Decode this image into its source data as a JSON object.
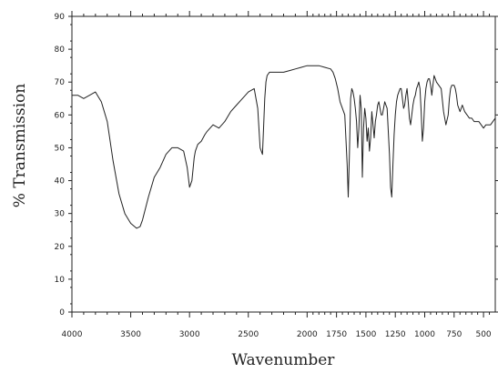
{
  "chart_data": {
    "type": "line",
    "title": "",
    "xlabel": "Wavenumber",
    "ylabel": "% Transmission",
    "xlim": [
      4000,
      400
    ],
    "ylim": [
      0,
      90
    ],
    "x_reversed": true,
    "grid": false,
    "legend": "none",
    "line_color": "#222222",
    "x_ticks": [
      4000,
      3500,
      3000,
      2500,
      2000,
      1750,
      1500,
      1250,
      1000,
      750,
      500
    ],
    "x_tick_labels": [
      "4000",
      "3500",
      "3000",
      "2500",
      "2000",
      "1750",
      "1500",
      "1250",
      "1000",
      "750",
      "500"
    ],
    "y_ticks": [
      0,
      10,
      20,
      30,
      40,
      50,
      60,
      70,
      80,
      90
    ],
    "y_tick_labels": [
      "0",
      "10",
      "20",
      "30",
      "40",
      "50",
      "60",
      "70",
      "80",
      "90"
    ],
    "series": [
      {
        "x": [
          4000,
          3950,
          3900,
          3850,
          3800,
          3750,
          3700,
          3650,
          3600,
          3550,
          3500,
          3450,
          3420,
          3400,
          3350,
          3300,
          3250,
          3200,
          3150,
          3100,
          3050,
          3020,
          3000,
          2980,
          2960,
          2950,
          2930,
          2900,
          2870,
          2850,
          2800,
          2750,
          2700,
          2650,
          2600,
          2550,
          2500,
          2450,
          2420,
          2400,
          2380,
          2370,
          2360,
          2350,
          2340,
          2320,
          2300,
          2250,
          2200,
          2150,
          2100,
          2050,
          2000,
          1950,
          1900,
          1850,
          1800,
          1780,
          1760,
          1740,
          1720,
          1700,
          1680,
          1660,
          1650,
          1640,
          1630,
          1620,
          1610,
          1600,
          1590,
          1580,
          1570,
          1560,
          1550,
          1540,
          1530,
          1520,
          1510,
          1500,
          1490,
          1480,
          1470,
          1460,
          1450,
          1440,
          1430,
          1420,
          1410,
          1400,
          1390,
          1380,
          1370,
          1360,
          1350,
          1340,
          1330,
          1320,
          1300,
          1290,
          1280,
          1270,
          1260,
          1250,
          1240,
          1230,
          1220,
          1210,
          1200,
          1190,
          1180,
          1170,
          1160,
          1150,
          1140,
          1130,
          1120,
          1110,
          1100,
          1090,
          1080,
          1070,
          1060,
          1050,
          1040,
          1030,
          1020,
          1010,
          1000,
          990,
          980,
          970,
          960,
          950,
          940,
          930,
          920,
          910,
          900,
          880,
          860,
          840,
          820,
          800,
          790,
          780,
          770,
          760,
          750,
          740,
          730,
          720,
          700,
          680,
          660,
          640,
          620,
          600,
          580,
          560,
          540,
          520,
          500,
          480,
          460,
          440,
          420,
          400
        ],
        "y": [
          66,
          66,
          65,
          66,
          67,
          64,
          58,
          46,
          36,
          30,
          27,
          25.5,
          26,
          28,
          35,
          41,
          44,
          48,
          50,
          50,
          49,
          44,
          38,
          40,
          47,
          49,
          51,
          52,
          54,
          55,
          57,
          56,
          58,
          61,
          63,
          65,
          67,
          68,
          62,
          50,
          48,
          56,
          65,
          70,
          72,
          73,
          73,
          73,
          73,
          73.5,
          74,
          74.5,
          75,
          75,
          75,
          74.5,
          74,
          73,
          71,
          68,
          64,
          62,
          60,
          45,
          35,
          48,
          65,
          68,
          67,
          65,
          62,
          58,
          50,
          56,
          66,
          62,
          41,
          56,
          62,
          59,
          52,
          56,
          49,
          53,
          61,
          57,
          53,
          58,
          60,
          63,
          64,
          62,
          60,
          60,
          62,
          64,
          63,
          62,
          48,
          38,
          35,
          45,
          54,
          60,
          64,
          66,
          67,
          68,
          68,
          65,
          62,
          63,
          66,
          68,
          64,
          59,
          57,
          60,
          63,
          65,
          66,
          68,
          69,
          70,
          68,
          61,
          52,
          56,
          64,
          68,
          70,
          71,
          71,
          69,
          66,
          69,
          72,
          71,
          70,
          69,
          68,
          61,
          57,
          60,
          65,
          68,
          69,
          69,
          69,
          68,
          66,
          63,
          61,
          63,
          61,
          60,
          59,
          59,
          58,
          58,
          58,
          57,
          56,
          57,
          57,
          57,
          58,
          59
        ]
      }
    ]
  }
}
